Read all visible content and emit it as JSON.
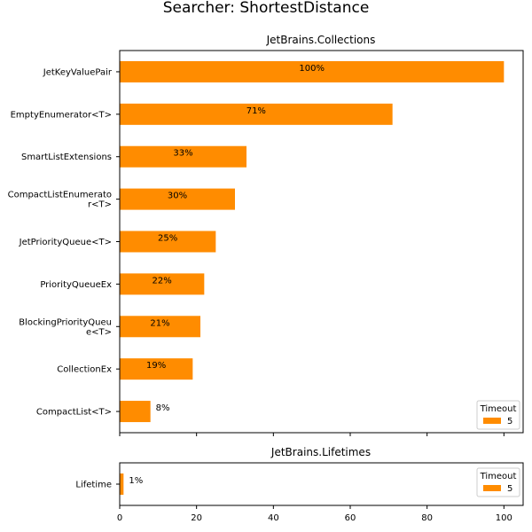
{
  "figure": {
    "suptitle": "Searcher: ShortestDistance"
  },
  "chart_data": [
    {
      "type": "bar",
      "orientation": "horizontal",
      "title": "JetBrains.Collections",
      "categories": [
        "JetKeyValuePair",
        "EmptyEnumerator<T>",
        "SmartListExtensions",
        "CompactListEnumerato\nr<T>",
        "JetPriorityQueue<T>",
        "PriorityQueueEx",
        "BlockingPriorityQueu\ne<T>",
        "CollectionEx",
        "CompactList<T>"
      ],
      "series": [
        {
          "name": "5",
          "color": "#ff8c00",
          "values": [
            100,
            71,
            33,
            30,
            25,
            22,
            21,
            19,
            8
          ]
        }
      ],
      "data_labels": [
        "100%",
        "71%",
        "33%",
        "30%",
        "25%",
        "22%",
        "21%",
        "19%",
        "8%"
      ],
      "xlim": [
        0,
        105
      ],
      "xticks": [
        0,
        20,
        40,
        60,
        80,
        100
      ],
      "show_xtick_labels": false,
      "grid": false,
      "legend": {
        "title": "Timeout",
        "placement": "lower-right"
      }
    },
    {
      "type": "bar",
      "orientation": "horizontal",
      "title": "JetBrains.Lifetimes",
      "categories": [
        "Lifetime"
      ],
      "series": [
        {
          "name": "5",
          "color": "#ff8c00",
          "values": [
            1
          ]
        }
      ],
      "data_labels": [
        "1%"
      ],
      "xlim": [
        0,
        105
      ],
      "xticks": [
        0,
        20,
        40,
        60,
        80,
        100
      ],
      "xtick_labels": [
        "0",
        "20",
        "40",
        "60",
        "80",
        "100"
      ],
      "show_xtick_labels": true,
      "grid": false,
      "legend": {
        "title": "Timeout",
        "placement": "top-right"
      }
    }
  ]
}
